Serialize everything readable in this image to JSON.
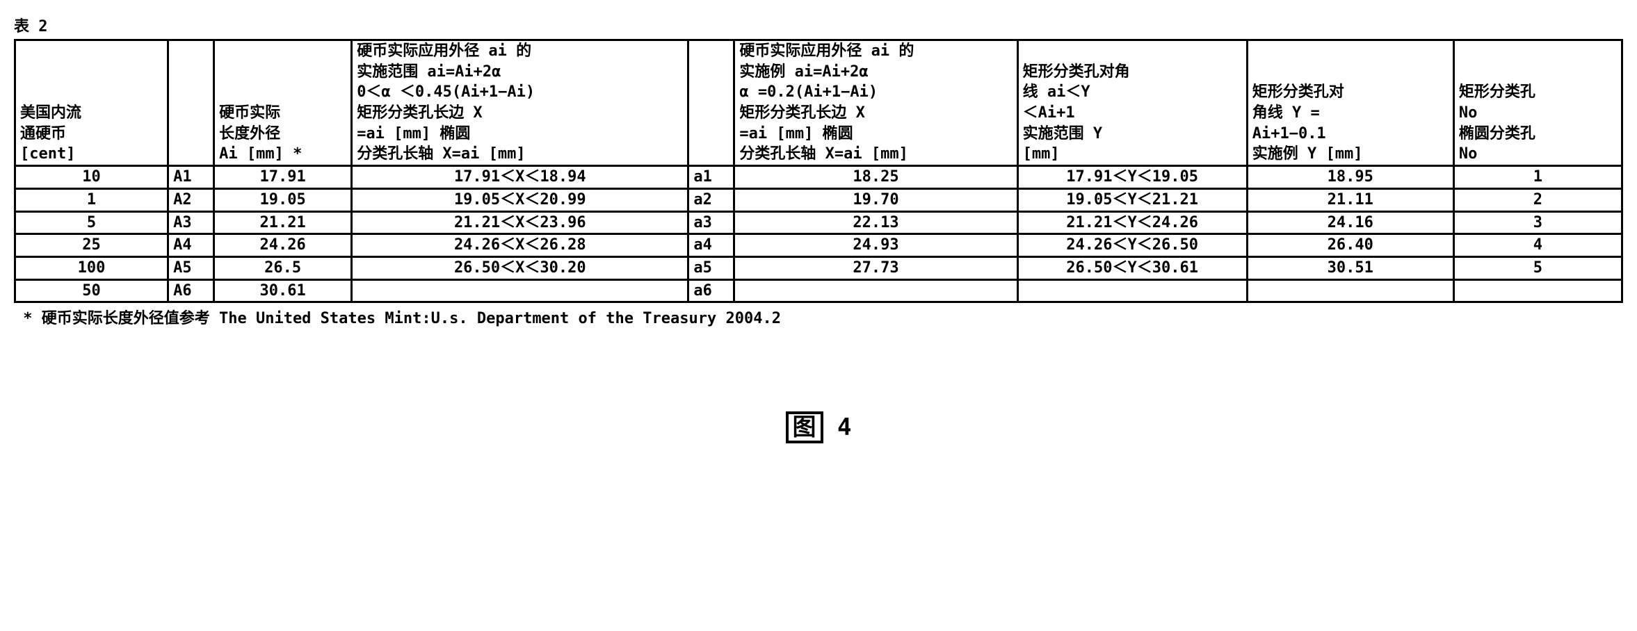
{
  "caption": "表 2",
  "headers": {
    "c1": "美国内流\n通硬币\n[cent]",
    "c2": "",
    "c3": "硬币实际\n长度外径\nAi [mm] *",
    "c4": "硬币实际应用外径 ai 的\n实施范围 ai=Ai+2α\n0＜α ＜0.45(Ai+1−Ai)\n矩形分类孔长边 X\n=ai [mm]        椭圆\n分类孔长轴 X=ai [mm]",
    "c5": "",
    "c6": "硬币实际应用外径 ai 的\n实施例   ai=Ai+2α\n  α =0.2(Ai+1−Ai)\n  矩形分类孔长边 X\n =ai [mm]        椭圆\n分类孔长轴 X=ai [mm]",
    "c7": "矩形分类孔对角\n线      ai＜Y\n    ＜Ai+1\n  实施范围 Y\n     [mm]",
    "c8": "矩形分类孔对\n角线    Y =\n  Ai+1−0.1\n实施例 Y [mm]",
    "c9": "矩形分类孔\nNo\n椭圆分类孔\nNo"
  },
  "rows": [
    {
      "cent": "10",
      "Alab": "A1",
      "Ai": "17.91",
      "xrange": "17.91＜X＜18.94",
      "alab": "a1",
      "ai": "18.25",
      "yrange": "17.91＜Y＜19.05",
      "yval": "18.95",
      "no": "1"
    },
    {
      "cent": "1",
      "Alab": "A2",
      "Ai": "19.05",
      "xrange": "19.05＜X＜20.99",
      "alab": "a2",
      "ai": "19.70",
      "yrange": "19.05＜Y＜21.21",
      "yval": "21.11",
      "no": "2"
    },
    {
      "cent": "5",
      "Alab": "A3",
      "Ai": "21.21",
      "xrange": "21.21＜X＜23.96",
      "alab": "a3",
      "ai": "22.13",
      "yrange": "21.21＜Y＜24.26",
      "yval": "24.16",
      "no": "3"
    },
    {
      "cent": "25",
      "Alab": "A4",
      "Ai": "24.26",
      "xrange": "24.26＜X＜26.28",
      "alab": "a4",
      "ai": "24.93",
      "yrange": "24.26＜Y＜26.50",
      "yval": "26.40",
      "no": "4"
    },
    {
      "cent": "100",
      "Alab": "A5",
      "Ai": "26.5",
      "xrange": "26.50＜X＜30.20",
      "alab": "a5",
      "ai": "27.73",
      "yrange": "26.50＜Y＜30.61",
      "yval": "30.51",
      "no": "5"
    },
    {
      "cent": "50",
      "Alab": "A6",
      "Ai": "30.61",
      "xrange": "",
      "alab": "a6",
      "ai": "",
      "yrange": "",
      "yval": "",
      "no": ""
    }
  ],
  "footnote": " * 硬币实际长度外径值参考 The United States Mint:U.s. Department of the Treasury 2004.2",
  "figure_label_boxed": "图",
  "figure_label_num": " 4"
}
